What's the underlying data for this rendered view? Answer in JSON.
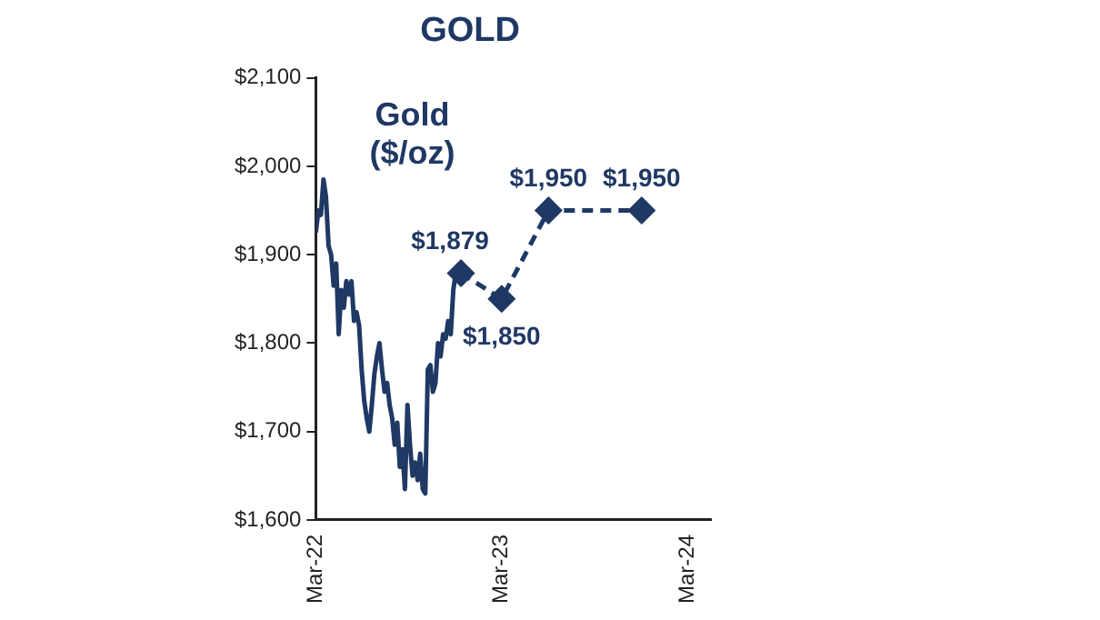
{
  "chart_data": {
    "type": "line",
    "title": "GOLD",
    "annotations": [
      "Gold ($/oz)"
    ],
    "xlim": [
      "2022-03-01",
      "2024-04-15"
    ],
    "xticks": [
      {
        "value": "2022-03-01",
        "label": "Mar-22"
      },
      {
        "value": "2023-03-01",
        "label": "Mar-23"
      },
      {
        "value": "2024-03-01",
        "label": "Mar-24"
      }
    ],
    "ylim": [
      1600,
      2100
    ],
    "yticks": [
      {
        "value": 1600,
        "label": "$1,600"
      },
      {
        "value": 1700,
        "label": "$1,700"
      },
      {
        "value": 1800,
        "label": "$1,800"
      },
      {
        "value": 1900,
        "label": "$1,900"
      },
      {
        "value": 2000,
        "label": "$2,000"
      },
      {
        "value": 2100,
        "label": "$2,100"
      }
    ],
    "grid": false,
    "legend": false,
    "series": [
      {
        "color": "#1f3864",
        "marker": "none",
        "line_style": "solid",
        "x": [
          "2022-03-01",
          "2022-03-06",
          "2022-03-11",
          "2022-03-16",
          "2022-03-21",
          "2022-03-26",
          "2022-03-31",
          "2022-04-05",
          "2022-04-10",
          "2022-04-15",
          "2022-04-20",
          "2022-04-25",
          "2022-04-30",
          "2022-05-05",
          "2022-05-10",
          "2022-05-15",
          "2022-05-20",
          "2022-05-25",
          "2022-05-30",
          "2022-06-04",
          "2022-06-09",
          "2022-06-14",
          "2022-06-19",
          "2022-06-24",
          "2022-06-29",
          "2022-07-04",
          "2022-07-09",
          "2022-07-14",
          "2022-07-19",
          "2022-07-24",
          "2022-07-29",
          "2022-08-03",
          "2022-08-08",
          "2022-08-13",
          "2022-08-18",
          "2022-08-23",
          "2022-08-28",
          "2022-09-02",
          "2022-09-07",
          "2022-09-12",
          "2022-09-17",
          "2022-09-22",
          "2022-09-27",
          "2022-10-02",
          "2022-10-07",
          "2022-10-12",
          "2022-10-17",
          "2022-10-22",
          "2022-10-27",
          "2022-11-01",
          "2022-11-06",
          "2022-11-11",
          "2022-11-16",
          "2022-11-21",
          "2022-11-26",
          "2022-12-01",
          "2022-12-06"
        ],
        "values": [
          1925,
          1950,
          1945,
          1985,
          1965,
          1910,
          1900,
          1865,
          1890,
          1810,
          1860,
          1840,
          1870,
          1855,
          1870,
          1825,
          1835,
          1820,
          1770,
          1735,
          1715,
          1700,
          1730,
          1765,
          1785,
          1800,
          1770,
          1745,
          1755,
          1730,
          1715,
          1685,
          1710,
          1660,
          1680,
          1635,
          1730,
          1685,
          1650,
          1665,
          1645,
          1675,
          1635,
          1630,
          1770,
          1775,
          1745,
          1755,
          1800,
          1785,
          1810,
          1805,
          1825,
          1810,
          1860,
          1880,
          1875
        ]
      },
      {
        "color": "#1f3864",
        "marker": "diamond",
        "line_style": "dashed",
        "x": [
          "2022-12-11",
          "2023-03-01",
          "2023-06-01",
          "2023-12-01"
        ],
        "values": [
          1879,
          1850,
          1950,
          1950
        ],
        "value_labels": [
          "$1,879",
          "$1,850",
          "$1,950",
          "$1,950"
        ]
      }
    ]
  }
}
